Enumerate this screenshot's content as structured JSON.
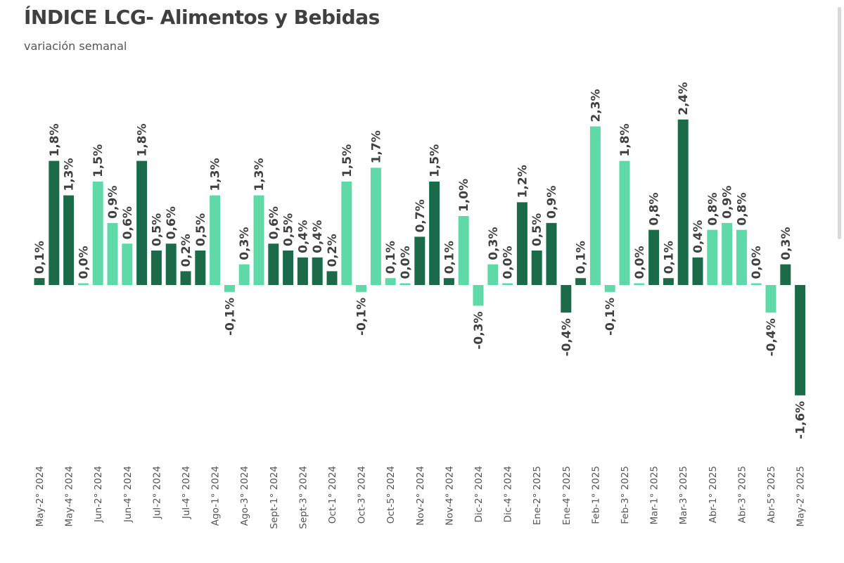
{
  "chart_data": {
    "type": "bar",
    "title": "ÍNDICE LCG- Alimentos y Bebidas",
    "subtitle": "variación semanal",
    "grid": false,
    "legend": "none",
    "ylim": [
      -1.6,
      2.4
    ],
    "colors": {
      "dark": "#1b6b4b",
      "light": "#5fd9a8"
    },
    "tick_labels": [
      "May-2° 2024",
      "May-4° 2024",
      "Jun-2° 2024",
      "Jun-4° 2024",
      "Jul-2° 2024",
      "Jul-4° 2024",
      "Ago-1° 2024",
      "Ago-3° 2024",
      "Sept-1° 2024",
      "Sept-3° 2024",
      "Oct-1° 2024",
      "Oct-3° 2024",
      "Oct-5° 2024",
      "Nov-2° 2024",
      "Nov-4° 2024",
      "Dic-2° 2024",
      "Dic-4° 2024",
      "Ene-2° 2025",
      "Ene-4° 2025",
      "Feb-1° 2025",
      "Feb-3° 2025",
      "Mar-1° 2025",
      "Mar-3° 2025",
      "Abr-1° 2025",
      "Abr-3° 2025",
      "Abr-5° 2025",
      "May-2° 2025"
    ],
    "values": [
      0.1,
      1.8,
      1.3,
      0.0,
      1.5,
      0.9,
      0.6,
      1.8,
      0.5,
      0.6,
      0.2,
      0.5,
      1.3,
      -0.1,
      0.3,
      1.3,
      0.6,
      0.5,
      0.4,
      0.4,
      0.2,
      1.5,
      -0.1,
      1.7,
      0.1,
      0.0,
      0.7,
      1.5,
      0.1,
      1.0,
      -0.3,
      0.3,
      0.0,
      1.2,
      0.5,
      0.9,
      -0.4,
      0.1,
      2.3,
      -0.1,
      1.8,
      0.0,
      0.8,
      0.1,
      2.4,
      0.4,
      0.8,
      0.9,
      0.8,
      0.0,
      -0.4,
      0.3,
      -1.6
    ],
    "value_labels": [
      "0,1%",
      "1,8%",
      "1,3%",
      "0,0%",
      "1,5%",
      "0,9%",
      "0,6%",
      "1,8%",
      "0,5%",
      "0,6%",
      "0,2%",
      "0,5%",
      "1,3%",
      "-0,1%",
      "0,3%",
      "1,3%",
      "0,6%",
      "0,5%",
      "0,4%",
      "0,4%",
      "0,2%",
      "1,5%",
      "-0,1%",
      "1,7%",
      "0,1%",
      "0,0%",
      "0,7%",
      "1,5%",
      "0,1%",
      "1,0%",
      "-0,3%",
      "0,3%",
      "0,0%",
      "1,2%",
      "0,5%",
      "0,9%",
      "-0,4%",
      "0,1%",
      "2,3%",
      "-0,1%",
      "1,8%",
      "0,0%",
      "0,8%",
      "0,1%",
      "2,4%",
      "0,4%",
      "0,8%",
      "0,9%",
      "0,8%",
      "0,0%",
      "-0,4%",
      "0,3%",
      "-1,6%"
    ],
    "bar_colors": [
      "dark",
      "dark",
      "dark",
      "light",
      "light",
      "light",
      "light",
      "dark",
      "dark",
      "dark",
      "dark",
      "dark",
      "light",
      "light",
      "light",
      "light",
      "dark",
      "dark",
      "dark",
      "dark",
      "dark",
      "light",
      "light",
      "light",
      "light",
      "light",
      "dark",
      "dark",
      "dark",
      "light",
      "light",
      "light",
      "light",
      "dark",
      "dark",
      "dark",
      "dark",
      "dark",
      "light",
      "light",
      "light",
      "light",
      "dark",
      "dark",
      "dark",
      "dark",
      "light",
      "light",
      "light",
      "light",
      "light",
      "dark",
      "dark"
    ]
  }
}
